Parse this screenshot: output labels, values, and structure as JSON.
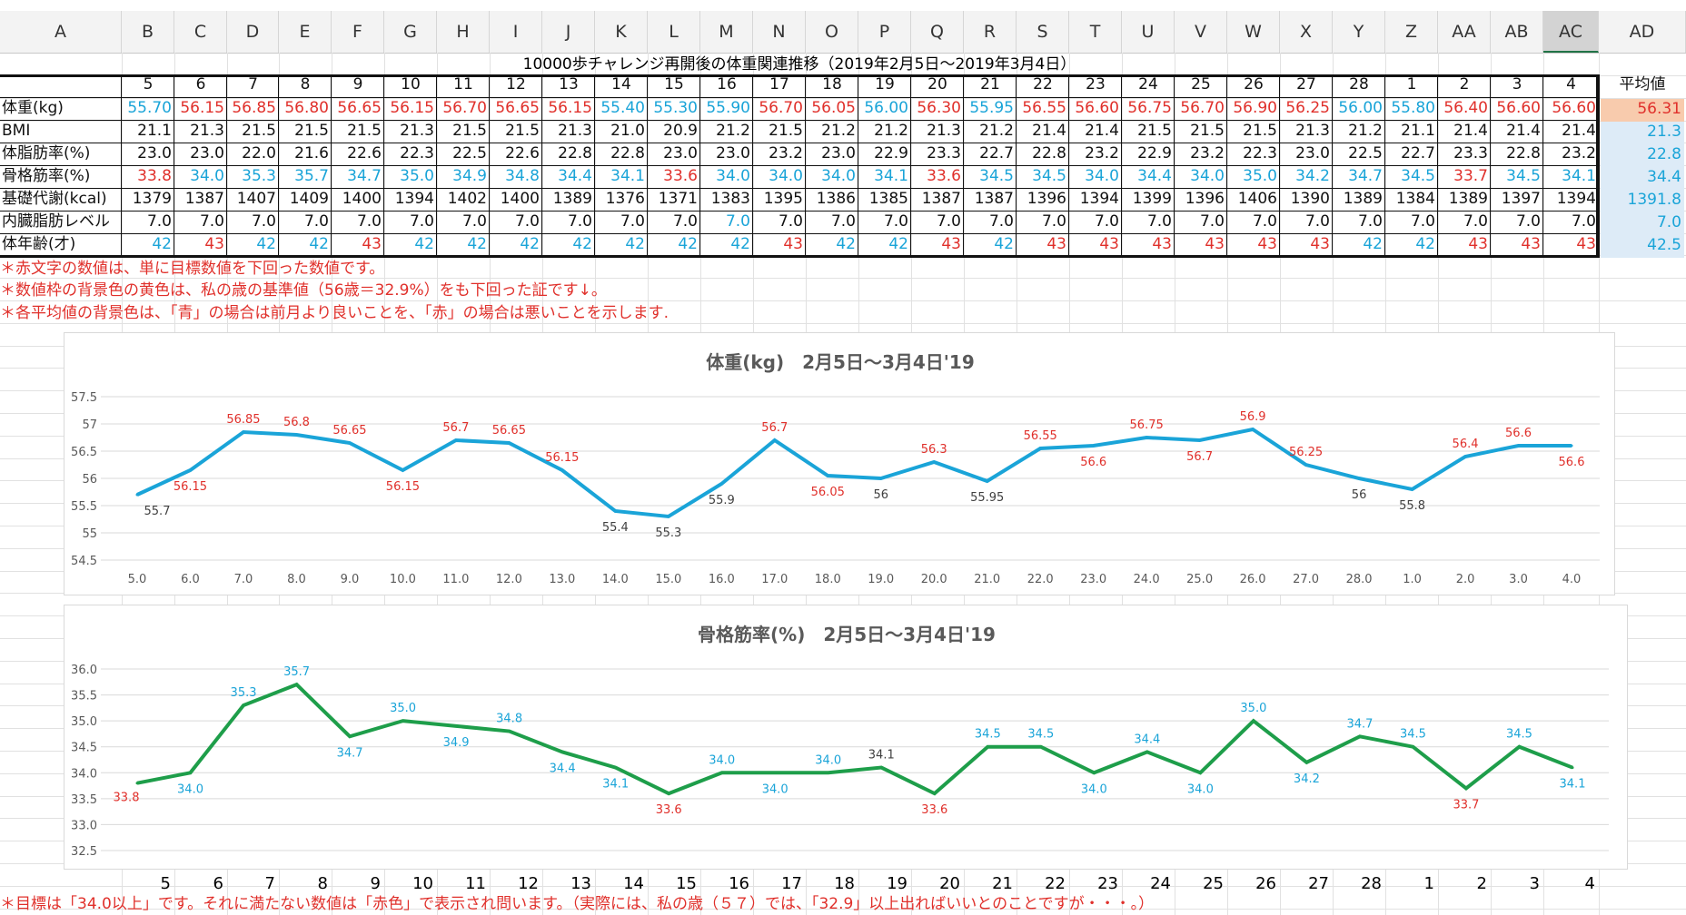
{
  "columns": [
    "A",
    "B",
    "C",
    "D",
    "E",
    "F",
    "G",
    "H",
    "I",
    "J",
    "K",
    "L",
    "M",
    "N",
    "O",
    "P",
    "Q",
    "R",
    "S",
    "T",
    "U",
    "V",
    "W",
    "X",
    "Y",
    "Z",
    "AA",
    "AB",
    "AC",
    "AD"
  ],
  "selected_column": "AC",
  "table": {
    "title": "10000歩チャレンジ再開後の体重関連推移（2019年2月5日～2019年3月4日）",
    "avg_header": "平均値",
    "days": [
      "5",
      "6",
      "7",
      "8",
      "9",
      "10",
      "11",
      "12",
      "13",
      "14",
      "15",
      "16",
      "17",
      "18",
      "19",
      "20",
      "21",
      "22",
      "23",
      "24",
      "25",
      "26",
      "27",
      "28",
      "1",
      "2",
      "3",
      "4"
    ],
    "rows": [
      {
        "label": "体重(kg)",
        "values": [
          "55.70",
          "56.15",
          "56.85",
          "56.80",
          "56.65",
          "56.15",
          "56.70",
          "56.65",
          "56.15",
          "55.40",
          "55.30",
          "55.90",
          "56.70",
          "56.05",
          "56.00",
          "56.30",
          "55.95",
          "56.55",
          "56.60",
          "56.75",
          "56.70",
          "56.90",
          "56.25",
          "56.00",
          "55.80",
          "56.40",
          "56.60",
          "56.60"
        ],
        "colors": [
          "b",
          "r",
          "r",
          "r",
          "r",
          "r",
          "r",
          "r",
          "r",
          "b",
          "b",
          "b",
          "r",
          "r",
          "b",
          "r",
          "b",
          "r",
          "r",
          "r",
          "r",
          "r",
          "r",
          "b",
          "b",
          "r",
          "r",
          "r"
        ],
        "avg": "56.31",
        "avg_bg": "#f8cbad",
        "avg_color": "#e0302b"
      },
      {
        "label": "BMI",
        "values": [
          "21.1",
          "21.3",
          "21.5",
          "21.5",
          "21.5",
          "21.3",
          "21.5",
          "21.5",
          "21.3",
          "21.0",
          "20.9",
          "21.2",
          "21.5",
          "21.2",
          "21.2",
          "21.3",
          "21.2",
          "21.4",
          "21.4",
          "21.5",
          "21.5",
          "21.5",
          "21.3",
          "21.2",
          "21.1",
          "21.4",
          "21.4",
          "21.4"
        ],
        "colors": [
          "k",
          "k",
          "k",
          "k",
          "k",
          "k",
          "k",
          "k",
          "k",
          "k",
          "k",
          "k",
          "k",
          "k",
          "k",
          "k",
          "k",
          "k",
          "k",
          "k",
          "k",
          "k",
          "k",
          "k",
          "k",
          "k",
          "k",
          "k"
        ],
        "avg": "21.3",
        "avg_bg": "#ddebf7",
        "avg_color": "#1aa4d8"
      },
      {
        "label": "体脂肪率(%)",
        "values": [
          "23.0",
          "23.0",
          "22.0",
          "21.6",
          "22.6",
          "22.3",
          "22.5",
          "22.6",
          "22.8",
          "22.8",
          "23.0",
          "23.0",
          "23.2",
          "23.0",
          "22.9",
          "23.3",
          "22.7",
          "22.8",
          "23.2",
          "22.9",
          "23.2",
          "22.3",
          "23.0",
          "22.5",
          "22.7",
          "23.3",
          "22.8",
          "23.2"
        ],
        "colors": [
          "k",
          "k",
          "k",
          "k",
          "k",
          "k",
          "k",
          "k",
          "k",
          "k",
          "k",
          "k",
          "k",
          "k",
          "k",
          "k",
          "k",
          "k",
          "k",
          "k",
          "k",
          "k",
          "k",
          "k",
          "k",
          "k",
          "k",
          "k"
        ],
        "avg": "22.8",
        "avg_bg": "#ddebf7",
        "avg_color": "#1aa4d8"
      },
      {
        "label": "骨格筋率(%)",
        "values": [
          "33.8",
          "34.0",
          "35.3",
          "35.7",
          "34.7",
          "35.0",
          "34.9",
          "34.8",
          "34.4",
          "34.1",
          "33.6",
          "34.0",
          "34.0",
          "34.0",
          "34.1",
          "33.6",
          "34.5",
          "34.5",
          "34.0",
          "34.4",
          "34.0",
          "35.0",
          "34.2",
          "34.7",
          "34.5",
          "33.7",
          "34.5",
          "34.1"
        ],
        "colors": [
          "r",
          "b",
          "b",
          "b",
          "b",
          "b",
          "b",
          "b",
          "b",
          "b",
          "r",
          "b",
          "b",
          "b",
          "b",
          "r",
          "b",
          "b",
          "b",
          "b",
          "b",
          "b",
          "b",
          "b",
          "b",
          "r",
          "b",
          "b"
        ],
        "avg": "34.4",
        "avg_bg": "#ddebf7",
        "avg_color": "#1aa4d8"
      },
      {
        "label": "基礎代謝(kcal)",
        "values": [
          "1379",
          "1387",
          "1407",
          "1409",
          "1400",
          "1394",
          "1402",
          "1400",
          "1389",
          "1376",
          "1371",
          "1383",
          "1395",
          "1386",
          "1385",
          "1387",
          "1387",
          "1396",
          "1394",
          "1399",
          "1396",
          "1406",
          "1390",
          "1389",
          "1384",
          "1389",
          "1397",
          "1394"
        ],
        "colors": [
          "k",
          "k",
          "k",
          "k",
          "k",
          "k",
          "k",
          "k",
          "k",
          "k",
          "k",
          "k",
          "k",
          "k",
          "k",
          "k",
          "k",
          "k",
          "k",
          "k",
          "k",
          "k",
          "k",
          "k",
          "k",
          "k",
          "k",
          "k"
        ],
        "avg": "1391.8",
        "avg_bg": "#ddebf7",
        "avg_color": "#1aa4d8"
      },
      {
        "label": "内臓脂肪レベル",
        "values": [
          "7.0",
          "7.0",
          "7.0",
          "7.0",
          "7.0",
          "7.0",
          "7.0",
          "7.0",
          "7.0",
          "7.0",
          "7.0",
          "7.0",
          "7.0",
          "7.0",
          "7.0",
          "7.0",
          "7.0",
          "7.0",
          "7.0",
          "7.0",
          "7.0",
          "7.0",
          "7.0",
          "7.0",
          "7.0",
          "7.0",
          "7.0",
          "7.0"
        ],
        "colors": [
          "k",
          "k",
          "k",
          "k",
          "k",
          "k",
          "k",
          "k",
          "k",
          "k",
          "k",
          "b",
          "k",
          "k",
          "k",
          "k",
          "k",
          "k",
          "k",
          "k",
          "k",
          "k",
          "k",
          "k",
          "k",
          "k",
          "k",
          "k"
        ],
        "avg": "7.0",
        "avg_bg": "#ddebf7",
        "avg_color": "#1aa4d8"
      },
      {
        "label": "体年齢(才)",
        "values": [
          "42",
          "43",
          "42",
          "42",
          "43",
          "42",
          "42",
          "42",
          "42",
          "42",
          "42",
          "42",
          "43",
          "42",
          "42",
          "43",
          "42",
          "43",
          "43",
          "43",
          "43",
          "43",
          "43",
          "42",
          "42",
          "43",
          "43",
          "43"
        ],
        "colors": [
          "b",
          "r",
          "b",
          "b",
          "r",
          "b",
          "b",
          "b",
          "b",
          "b",
          "b",
          "b",
          "r",
          "b",
          "b",
          "r",
          "b",
          "r",
          "r",
          "r",
          "r",
          "r",
          "r",
          "b",
          "b",
          "r",
          "r",
          "r"
        ],
        "avg": "42.5",
        "avg_bg": "#ddebf7",
        "avg_color": "#1aa4d8"
      }
    ]
  },
  "notes": [
    "＊赤文字の数値は、単に目標数値を下回った数値です。",
    "＊数値枠の背景色の黄色は、私の歳の基準値（56歳＝32.9%）をも下回った証です↓。",
    "＊各平均値の背景色は、「青」の場合は前月より良いことを、「赤」の場合は悪いことを示します."
  ],
  "footer_note": "＊目標は「34.0以上」です。それに満たない数値は「赤色」で表示され問います。（実際には、私の歳（５７）では、「32.9」以上出ればいいとのことですが・・・。）",
  "bottom_days": [
    "5",
    "6",
    "7",
    "8",
    "9",
    "10",
    "11",
    "12",
    "13",
    "14",
    "15",
    "16",
    "17",
    "18",
    "19",
    "20",
    "21",
    "22",
    "23",
    "24",
    "25",
    "26",
    "27",
    "28",
    "1",
    "2",
    "3",
    "4"
  ],
  "colors": {
    "red": "#e0302b",
    "blue": "#1aa4d8",
    "weight_line": "#1aa4d8",
    "muscle_line": "#1e9e4a",
    "grid": "#d9d9d9",
    "label_dark": "#404040"
  },
  "chart_data": [
    {
      "type": "line",
      "title": "体重(kg)　2月5日～3月4日'19",
      "categories": [
        "5.0",
        "6.0",
        "7.0",
        "8.0",
        "9.0",
        "10.0",
        "11.0",
        "12.0",
        "13.0",
        "14.0",
        "15.0",
        "16.0",
        "17.0",
        "18.0",
        "19.0",
        "20.0",
        "21.0",
        "22.0",
        "23.0",
        "24.0",
        "25.0",
        "26.0",
        "27.0",
        "28.0",
        "1.0",
        "2.0",
        "3.0",
        "4.0"
      ],
      "values": [
        55.7,
        56.15,
        56.85,
        56.8,
        56.65,
        56.15,
        56.7,
        56.65,
        56.15,
        55.4,
        55.3,
        55.9,
        56.7,
        56.05,
        56,
        56.3,
        55.95,
        56.55,
        56.6,
        56.75,
        56.7,
        56.9,
        56.25,
        56,
        55.8,
        56.4,
        56.6,
        56.6
      ],
      "labels": [
        "55.7",
        "56.15",
        "56.85",
        "56.8",
        "56.65",
        "56.15",
        "56.7",
        "56.65",
        "56.15",
        "55.4",
        "55.3",
        "55.9",
        "56.7",
        "56.05",
        "56",
        "56.3",
        "55.95",
        "56.55",
        "56.6",
        "56.75",
        "56.7",
        "56.9",
        "56.25",
        "56",
        "55.8",
        "56.4",
        "56.6",
        "56.6"
      ],
      "label_colors": [
        "k",
        "r",
        "r",
        "r",
        "r",
        "r",
        "r",
        "r",
        "r",
        "k",
        "k",
        "k",
        "r",
        "r",
        "k",
        "r",
        "k",
        "r",
        "r",
        "r",
        "r",
        "r",
        "r",
        "k",
        "k",
        "r",
        "r",
        "r"
      ],
      "label_pos": [
        "b",
        "b",
        "a",
        "a",
        "a",
        "b",
        "a",
        "a",
        "a",
        "b",
        "b",
        "b",
        "a",
        "b",
        "b",
        "a",
        "b",
        "a",
        "b",
        "a",
        "b",
        "a",
        "a",
        "b",
        "b",
        "a",
        "a",
        "b"
      ],
      "yticks": [
        "57.5",
        "57",
        "56.5",
        "56",
        "55.5",
        "55",
        "54.5"
      ],
      "ylim": [
        54.5,
        57.5
      ],
      "grid": true
    },
    {
      "type": "line",
      "title": "骨格筋率(%)　2月5日～3月4日'19",
      "categories": [
        "5",
        "6",
        "7",
        "8",
        "9",
        "10",
        "11",
        "12",
        "13",
        "14",
        "15",
        "16",
        "17",
        "18",
        "19",
        "20",
        "21",
        "22",
        "23",
        "24",
        "25",
        "26",
        "27",
        "28",
        "1",
        "2",
        "3",
        "4"
      ],
      "values": [
        33.8,
        34.0,
        35.3,
        35.7,
        34.7,
        35.0,
        34.9,
        34.8,
        34.4,
        34.1,
        33.6,
        34.0,
        34.0,
        34.0,
        34.1,
        33.6,
        34.5,
        34.5,
        34.0,
        34.4,
        34.0,
        35.0,
        34.2,
        34.7,
        34.5,
        33.7,
        34.5,
        34.1
      ],
      "labels": [
        "33.8",
        "34.0",
        "35.3",
        "35.7",
        "34.7",
        "35.0",
        "34.9",
        "34.8",
        "34.4",
        "34.1",
        "33.6",
        "34.0",
        "34.0",
        "34.0",
        "34.1",
        "33.6",
        "34.5",
        "34.5",
        "34.0",
        "34.4",
        "34.0",
        "35.0",
        "34.2",
        "34.7",
        "34.5",
        "33.7",
        "34.5",
        "34.1"
      ],
      "label_colors": [
        "r",
        "b",
        "b",
        "b",
        "b",
        "b",
        "b",
        "b",
        "b",
        "b",
        "r",
        "b",
        "b",
        "b",
        "k",
        "r",
        "b",
        "b",
        "b",
        "b",
        "b",
        "b",
        "b",
        "b",
        "b",
        "r",
        "b",
        "b"
      ],
      "label_pos": [
        "bl",
        "b",
        "a",
        "a",
        "b",
        "a",
        "b",
        "a",
        "b",
        "b",
        "b",
        "a",
        "b",
        "a",
        "a",
        "b",
        "a",
        "a",
        "b",
        "a",
        "b",
        "a",
        "b",
        "a",
        "a",
        "b",
        "a",
        "b"
      ],
      "yticks": [
        "36.0",
        "35.5",
        "35.0",
        "34.5",
        "34.0",
        "33.5",
        "33.0",
        "32.5"
      ],
      "ylim": [
        32.5,
        36.0
      ],
      "grid": true
    }
  ]
}
